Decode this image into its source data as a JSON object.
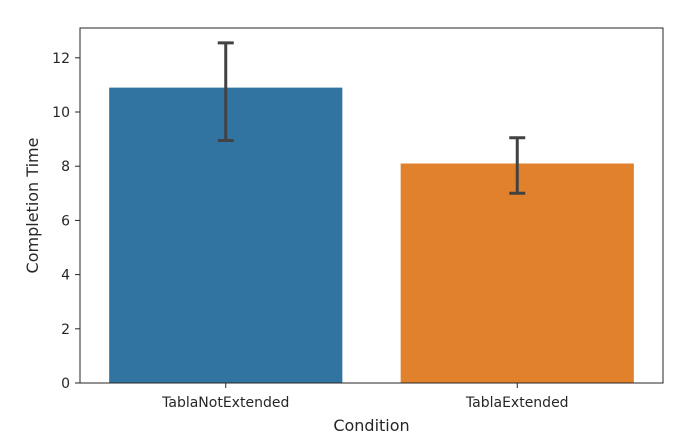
{
  "chart_data": {
    "type": "bar",
    "categories": [
      "TablaNotExtended",
      "TablaExtended"
    ],
    "values": [
      10.9,
      8.1
    ],
    "error_low": [
      8.95,
      7.0
    ],
    "error_high": [
      12.55,
      9.05
    ],
    "xlabel": "Condition",
    "ylabel": "Completion Time",
    "ylim": [
      0,
      13.1
    ],
    "yticks": [
      0,
      2,
      4,
      6,
      8,
      10,
      12
    ],
    "grid": false,
    "colors": [
      "#3274a1",
      "#e1812c"
    ],
    "errorbar_color": "#424242"
  }
}
